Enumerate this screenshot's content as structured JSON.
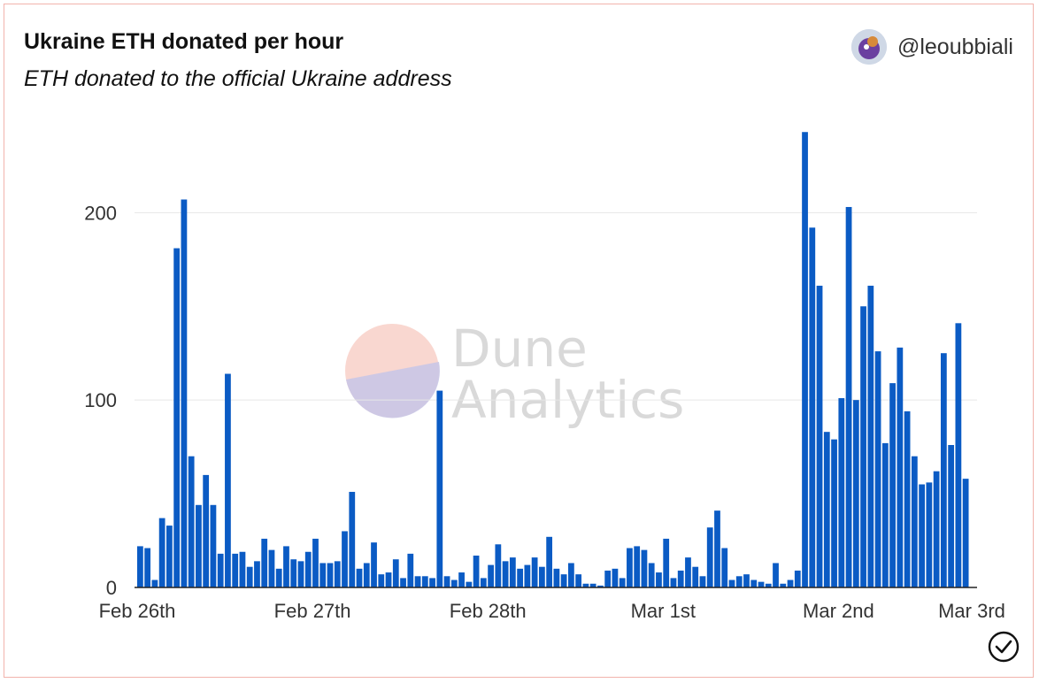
{
  "header": {
    "title": "Ukraine ETH donated per hour",
    "subtitle": "ETH donated to the official Ukraine address",
    "author": "@leoubbiali",
    "avatar_icon": "avatar-icon"
  },
  "watermark": {
    "line1": "Dune",
    "line2": "Analytics"
  },
  "colors": {
    "bar": "#0b5bc4",
    "grid": "#e6e6e6",
    "axis": "#222222",
    "frame": "#f2b3ac"
  },
  "chart_data": {
    "type": "bar",
    "title": "Ukraine ETH donated per hour",
    "subtitle": "ETH donated to the official Ukraine address",
    "x_tick_labels": [
      "Feb 26th",
      "Feb 27th",
      "Feb 28th",
      "Mar 1st",
      "Mar 2nd",
      "Mar 3rd"
    ],
    "y_ticks": [
      0,
      100,
      200
    ],
    "ylim": [
      0,
      245
    ],
    "grid": true,
    "values": [
      22,
      21,
      4,
      37,
      33,
      181,
      207,
      70,
      44,
      60,
      44,
      18,
      114,
      18,
      19,
      11,
      14,
      26,
      20,
      10,
      22,
      15,
      14,
      19,
      26,
      13,
      13,
      14,
      30,
      51,
      10,
      13,
      24,
      7,
      8,
      15,
      5,
      18,
      6,
      6,
      5,
      105,
      6,
      4,
      8,
      3,
      17,
      5,
      12,
      23,
      14,
      16,
      10,
      12,
      16,
      11,
      27,
      10,
      7,
      13,
      7,
      2,
      2,
      1,
      9,
      10,
      5,
      21,
      22,
      20,
      13,
      8,
      26,
      5,
      9,
      16,
      11,
      6,
      32,
      41,
      21,
      4,
      6,
      7,
      4,
      3,
      2,
      13,
      2,
      4,
      9,
      243,
      192,
      161,
      83,
      79,
      101,
      203,
      100,
      150,
      161,
      126,
      77,
      109,
      128,
      94,
      70,
      55,
      56,
      62,
      125,
      76,
      141,
      58
    ]
  }
}
